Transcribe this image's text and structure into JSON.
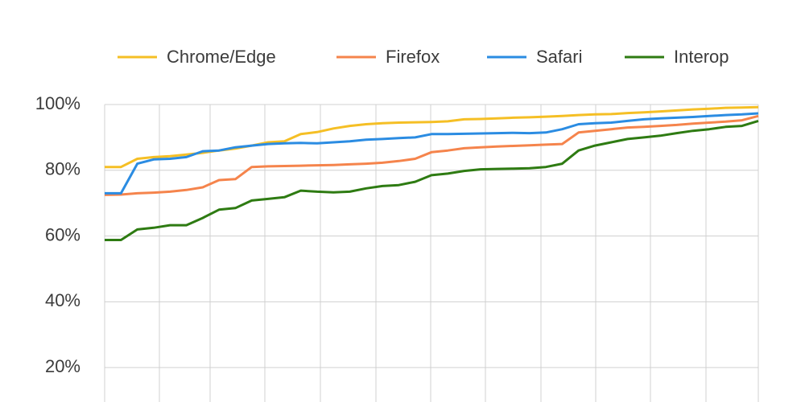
{
  "chart_data": {
    "type": "line",
    "categories": [
      null,
      null,
      null,
      null,
      null,
      null,
      null,
      null,
      null,
      null,
      null,
      null,
      null,
      null,
      null,
      null,
      null,
      null,
      null,
      null,
      null,
      null,
      null,
      null,
      null,
      null,
      null,
      null,
      null,
      null,
      null,
      null,
      null,
      null,
      null,
      null,
      null,
      null,
      null,
      null,
      null
    ],
    "series": [
      {
        "name": "Chrome/Edge",
        "color": "#f5bf25",
        "values": [
          81,
          81,
          83.5,
          84,
          84.3,
          84.8,
          85.3,
          86,
          86.6,
          87.5,
          88.5,
          88.8,
          91,
          91.6,
          92.7,
          93.5,
          94,
          94.3,
          94.5,
          94.6,
          94.7,
          94.9,
          95.5,
          95.6,
          95.8,
          96,
          96.1,
          96.3,
          96.5,
          96.8,
          97,
          97.1,
          97.4,
          97.6,
          97.9,
          98.2,
          98.5,
          98.7,
          99,
          99.1,
          99.2
        ]
      },
      {
        "name": "Firefox",
        "color": "#f5844c",
        "values": [
          72.5,
          72.6,
          73,
          73.2,
          73.5,
          74,
          74.8,
          77,
          77.3,
          81,
          81.2,
          81.3,
          81.4,
          81.5,
          81.6,
          81.8,
          82,
          82.3,
          82.8,
          83.5,
          85.5,
          86,
          86.7,
          87,
          87.2,
          87.4,
          87.6,
          87.8,
          88,
          91.5,
          92,
          92.5,
          93,
          93.2,
          93.5,
          93.8,
          94.2,
          94.5,
          94.8,
          95.2,
          96.5
        ]
      },
      {
        "name": "Safari",
        "color": "#2b8ce2",
        "values": [
          73,
          73,
          82,
          83.3,
          83.5,
          84,
          85.8,
          86,
          87,
          87.5,
          88,
          88.2,
          88.3,
          88.2,
          88.5,
          88.8,
          89.3,
          89.5,
          89.8,
          90,
          91,
          91,
          91.1,
          91.2,
          91.3,
          91.4,
          91.3,
          91.5,
          92.5,
          94,
          94.3,
          94.5,
          95,
          95.5,
          95.8,
          96,
          96.2,
          96.5,
          96.8,
          97,
          97.3
        ]
      },
      {
        "name": "Interop",
        "color": "#2e7b12",
        "values": [
          58.8,
          58.8,
          62,
          62.5,
          63.3,
          63.3,
          65.5,
          68,
          68.5,
          70.8,
          71.3,
          71.8,
          73.8,
          73.5,
          73.3,
          73.5,
          74.5,
          75.2,
          75.5,
          76.5,
          78.5,
          79,
          79.8,
          80.3,
          80.4,
          80.5,
          80.6,
          81,
          82,
          86,
          87.5,
          88.5,
          89.5,
          90,
          90.5,
          91.3,
          92,
          92.5,
          93.2,
          93.5,
          95
        ]
      }
    ],
    "ylim": [
      10,
      100
    ],
    "yticks": [
      {
        "value": 20,
        "label": "20%"
      },
      {
        "value": 40,
        "label": "40%"
      },
      {
        "value": 60,
        "label": "60%"
      },
      {
        "value": 80,
        "label": "80%"
      },
      {
        "value": 100,
        "label": "100%"
      }
    ],
    "grid": true,
    "legend": "top"
  }
}
